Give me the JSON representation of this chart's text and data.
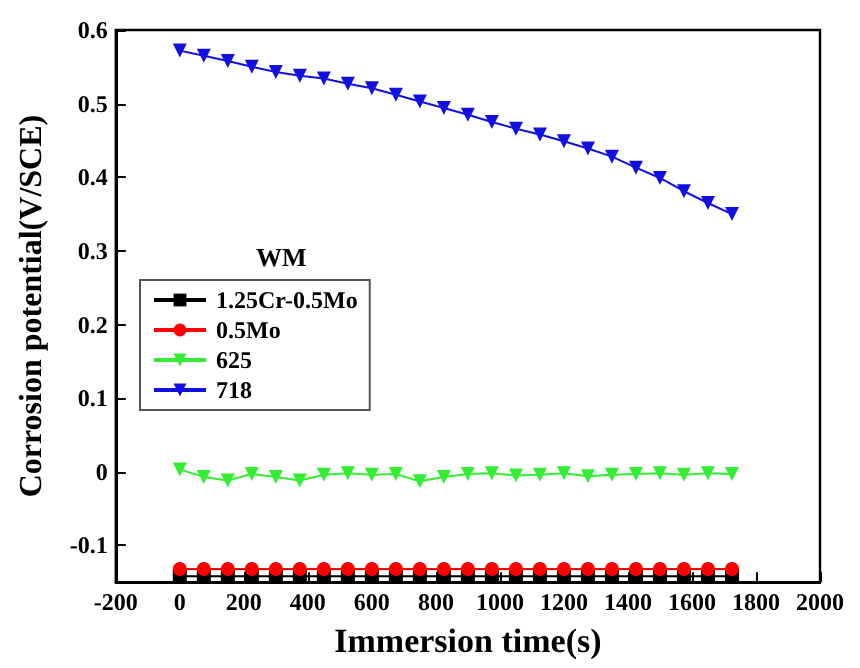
{
  "chart_data": {
    "type": "line",
    "xlabel": "Immersion time(s)",
    "ylabel": "Corrosion potential(V/SCE)",
    "annotations": [
      "WM"
    ],
    "x": [
      0,
      75,
      150,
      225,
      300,
      375,
      450,
      525,
      600,
      675,
      750,
      825,
      900,
      975,
      1050,
      1125,
      1200,
      1275,
      1350,
      1425,
      1500,
      1575,
      1650,
      1725
    ],
    "series": [
      {
        "name": "1.25Cr-0.5Mo",
        "color": "#000000",
        "marker": "square",
        "values": [
          -0.142,
          -0.142,
          -0.142,
          -0.142,
          -0.142,
          -0.142,
          -0.142,
          -0.142,
          -0.142,
          -0.142,
          -0.142,
          -0.142,
          -0.142,
          -0.142,
          -0.142,
          -0.142,
          -0.142,
          -0.142,
          -0.142,
          -0.142,
          -0.142,
          -0.142,
          -0.142,
          -0.142
        ]
      },
      {
        "name": "0.5Mo",
        "color": "#ff0000",
        "marker": "circle",
        "values": [
          -0.132,
          -0.132,
          -0.132,
          -0.132,
          -0.132,
          -0.132,
          -0.132,
          -0.132,
          -0.132,
          -0.132,
          -0.132,
          -0.132,
          -0.132,
          -0.132,
          -0.132,
          -0.132,
          -0.132,
          -0.132,
          -0.132,
          -0.132,
          -0.132,
          -0.132,
          -0.132,
          -0.132
        ]
      },
      {
        "name": "625",
        "color": "#33ee33",
        "marker": "triangle",
        "values": [
          0.003,
          -0.007,
          -0.012,
          -0.003,
          -0.007,
          -0.012,
          -0.004,
          -0.002,
          -0.004,
          -0.003,
          -0.013,
          -0.007,
          -0.003,
          -0.002,
          -0.005,
          -0.004,
          -0.002,
          -0.006,
          -0.004,
          -0.003,
          -0.002,
          -0.004,
          -0.002,
          -0.003
        ]
      },
      {
        "name": "718",
        "color": "#1010e0",
        "marker": "triangle",
        "values": [
          0.572,
          0.565,
          0.558,
          0.55,
          0.543,
          0.538,
          0.534,
          0.527,
          0.521,
          0.512,
          0.503,
          0.494,
          0.485,
          0.475,
          0.466,
          0.458,
          0.449,
          0.439,
          0.428,
          0.413,
          0.399,
          0.381,
          0.365,
          0.35
        ]
      }
    ],
    "xlim": [
      -200,
      2000
    ],
    "xticks": [
      -200,
      0,
      200,
      400,
      600,
      800,
      1000,
      1200,
      1400,
      1600,
      1800,
      2000
    ],
    "ylim": [
      -0.15,
      0.6
    ],
    "yticks": [
      -0.1,
      0.0,
      0.1,
      0.2,
      0.3,
      0.4,
      0.5,
      0.6
    ],
    "grid": false,
    "legend": "left",
    "line_style": "solid"
  }
}
